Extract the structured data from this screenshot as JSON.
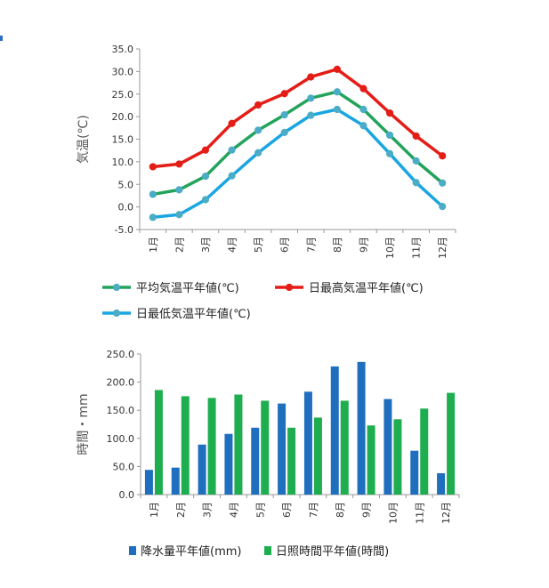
{
  "colors": {
    "avg": "#23a35b",
    "high": "#e41d17",
    "low": "#1aa6e0",
    "marker": "#4bacc6",
    "precip": "#1f6fbe",
    "sunshine": "#1fae4f",
    "grid": "#999999"
  },
  "chart_data": [
    {
      "type": "line",
      "categories": [
        "1月",
        "2月",
        "3月",
        "4月",
        "5月",
        "6月",
        "7月",
        "8月",
        "9月",
        "10月",
        "11月",
        "12月"
      ],
      "ylabel": "気温(℃)",
      "ylim": [
        -5,
        35
      ],
      "yticks": [
        "-5.0",
        "0.0",
        "5.0",
        "10.0",
        "15.0",
        "20.0",
        "25.0",
        "30.0",
        "35.0"
      ],
      "grid": false,
      "legend_position": "bottom",
      "series": [
        {
          "name": "平均気温平年値(℃)",
          "color_key": "avg",
          "values": [
            2.8,
            3.8,
            6.8,
            12.6,
            17.0,
            20.4,
            24.1,
            25.5,
            21.6,
            15.9,
            10.2,
            5.3
          ]
        },
        {
          "name": "日最高気温平年値(℃)",
          "color_key": "high",
          "values": [
            8.9,
            9.5,
            12.6,
            18.5,
            22.6,
            25.1,
            28.8,
            30.5,
            26.2,
            20.8,
            15.7,
            11.3
          ]
        },
        {
          "name": "日最低気温平年値(℃)",
          "color_key": "low",
          "values": [
            -2.3,
            -1.7,
            1.6,
            6.9,
            12.0,
            16.5,
            20.3,
            21.6,
            18.0,
            11.8,
            5.4,
            0.1
          ]
        }
      ]
    },
    {
      "type": "bar",
      "categories": [
        "1月",
        "2月",
        "3月",
        "4月",
        "5月",
        "6月",
        "7月",
        "8月",
        "9月",
        "10月",
        "11月",
        "12月"
      ],
      "ylabel": "時間・mm",
      "ylim": [
        0,
        250
      ],
      "yticks": [
        "0.0",
        "50.0",
        "100.0",
        "150.0",
        "200.0",
        "250.0"
      ],
      "grid": false,
      "legend_position": "bottom",
      "series": [
        {
          "name": "降水量平年値(mm)",
          "color_key": "precip",
          "values": [
            44,
            48,
            89,
            108,
            119,
            162,
            183,
            228,
            236,
            170,
            78,
            38
          ]
        },
        {
          "name": "日照時間平年値(時間)",
          "color_key": "sunshine",
          "values": [
            186,
            175,
            172,
            178,
            167,
            119,
            137,
            167,
            123,
            134,
            153,
            181
          ]
        }
      ]
    }
  ]
}
